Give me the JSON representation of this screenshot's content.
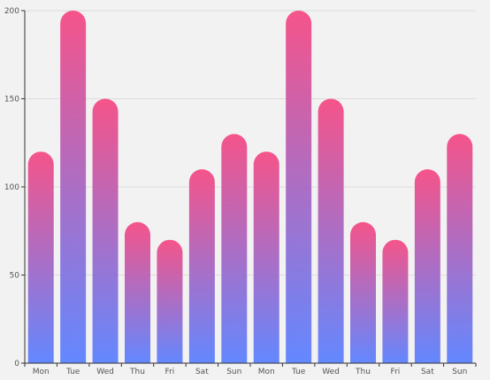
{
  "chart_data": {
    "type": "bar",
    "categories": [
      "Mon",
      "Tue",
      "Wed",
      "Thu",
      "Fri",
      "Sat",
      "Sun",
      "Mon",
      "Tue",
      "Wed",
      "Thu",
      "Fri",
      "Sat",
      "Sun"
    ],
    "values": [
      120,
      200,
      150,
      80,
      70,
      110,
      130,
      120,
      200,
      150,
      80,
      70,
      110,
      130
    ],
    "ylim": [
      0,
      200
    ],
    "yticks": [
      0,
      50,
      100,
      150,
      200
    ],
    "grid": true,
    "bar_shape": "rounded-top",
    "colors": {
      "gradient_top": "#f5548a",
      "gradient_bottom": "#6388ff",
      "grid": "#dcdcdc",
      "axis": "#333333",
      "background": "#f3f2f2"
    }
  }
}
